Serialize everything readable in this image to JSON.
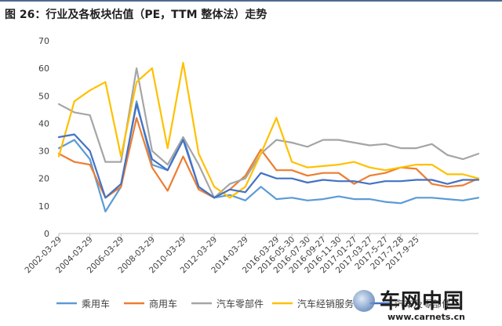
{
  "page_title": "图 26：行业及各板块估值（PE，TTM 整体法）走势",
  "watermark": {
    "brand": "车网中国",
    "url": "www.carnets.cn",
    "icon": "globe-logo-icon"
  },
  "chart_data": {
    "type": "line",
    "title": "图 26：行业及各板块估值（PE，TTM 整体法）走势",
    "xlabel": "",
    "ylabel": "",
    "ylim": [
      0,
      70
    ],
    "yticks": [
      0,
      10,
      20,
      30,
      40,
      50,
      60,
      70
    ],
    "grid": false,
    "legend_position": "bottom",
    "x_tick_labels": [
      "2002-03-29",
      "2004-03-29",
      "2006-03-29",
      "2008-03-29",
      "2010-03-29",
      "2012-03-29",
      "2014-03-29",
      "2016-03-29",
      "2016-05-30",
      "2016-07-30",
      "2016-09-27",
      "2016-11-30",
      "2017-01-27",
      "2017-03-27",
      "2017-5-27",
      "2017-7-28",
      "2017-9-25"
    ],
    "x_count": 28,
    "x_tick_indices": [
      0,
      2,
      4,
      6,
      8,
      10,
      12,
      14,
      15,
      16,
      17,
      18,
      19,
      20,
      21,
      22,
      23
    ],
    "series": [
      {
        "name": "乘用车",
        "color": "#5b9bd5",
        "values": [
          31,
          34,
          27,
          8,
          17,
          48,
          25,
          23,
          35,
          17,
          13,
          14,
          12,
          17,
          12.5,
          13,
          12,
          12.5,
          13.5,
          12.5,
          12.5,
          11.5,
          11,
          13,
          13,
          12.5,
          12,
          13
        ]
      },
      {
        "name": "商用车",
        "color": "#ed7d31",
        "values": [
          29,
          26,
          25,
          13,
          17,
          42,
          24,
          15.5,
          28,
          16,
          13,
          16,
          21,
          30.5,
          23,
          23,
          21,
          22,
          22,
          18,
          21,
          22,
          24,
          23.5,
          18,
          17,
          17.5,
          20
        ]
      },
      {
        "name": "汽车零部件",
        "color": "#a5a5a5",
        "values": [
          47,
          44,
          43,
          26,
          26,
          60,
          30,
          25,
          35,
          25,
          13,
          18,
          20,
          29,
          34,
          33,
          31.5,
          34,
          34,
          33,
          32,
          32.5,
          31,
          31,
          32.5,
          28.5,
          27,
          29
        ]
      },
      {
        "name": "汽车经销服务",
        "color": "#ffc000",
        "values": [
          28,
          48,
          52,
          55,
          28,
          55,
          60,
          31,
          62,
          29,
          17,
          13,
          17,
          29,
          42,
          26,
          24,
          24.5,
          25,
          26,
          24,
          23,
          24,
          25,
          25,
          21.5,
          21.5,
          20
        ]
      },
      {
        "name": "汽车及零部件",
        "color": "#4472c4",
        "values": [
          35,
          36,
          30,
          13,
          18,
          47,
          27,
          23,
          34,
          17,
          13,
          16,
          15,
          22,
          20,
          20,
          18.5,
          19.5,
          19,
          19,
          18,
          19,
          19,
          19.5,
          19.5,
          18,
          19.5,
          19.5
        ]
      }
    ]
  }
}
